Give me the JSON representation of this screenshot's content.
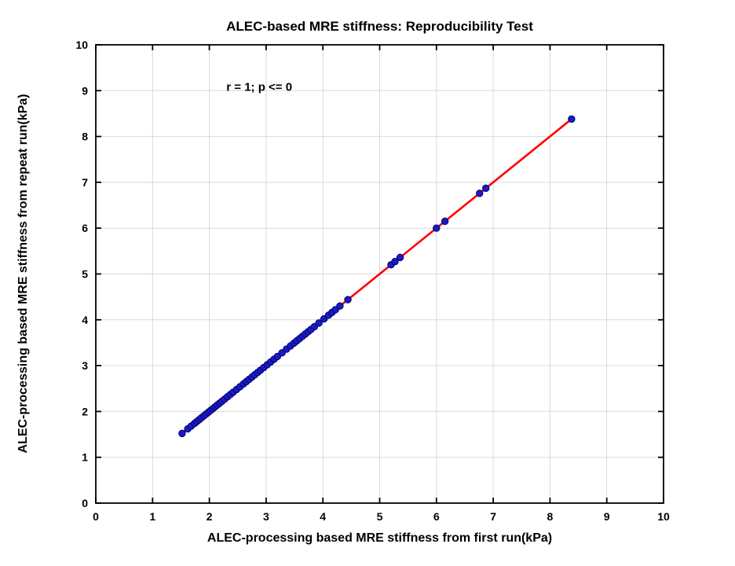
{
  "chart_data": {
    "type": "scatter",
    "title": "ALEC-based MRE stiffness: Reproducibility Test",
    "xlabel": "ALEC-processing based MRE stiffness from first run(kPa)",
    "ylabel": "ALEC-processing based MRE stiffness from repeat run(kPa)",
    "annotation": {
      "text": "r = 1; p <= 0",
      "x": 2.3,
      "y": 9.08
    },
    "xlim": [
      0,
      10
    ],
    "ylim": [
      0,
      10
    ],
    "xticks": [
      0,
      1,
      2,
      3,
      4,
      5,
      6,
      7,
      8,
      9,
      10
    ],
    "yticks": [
      0,
      1,
      2,
      3,
      4,
      5,
      6,
      7,
      8,
      9,
      10
    ],
    "grid": true,
    "legend": null,
    "fit_line": {
      "x1": 1.52,
      "y1": 1.52,
      "x2": 8.38,
      "y2": 8.38
    },
    "points": [
      [
        1.52,
        1.52
      ],
      [
        1.62,
        1.62
      ],
      [
        1.68,
        1.68
      ],
      [
        1.74,
        1.74
      ],
      [
        1.78,
        1.78
      ],
      [
        1.82,
        1.82
      ],
      [
        1.86,
        1.86
      ],
      [
        1.9,
        1.9
      ],
      [
        1.94,
        1.94
      ],
      [
        1.98,
        1.98
      ],
      [
        2.02,
        2.02
      ],
      [
        2.06,
        2.06
      ],
      [
        2.1,
        2.1
      ],
      [
        2.14,
        2.14
      ],
      [
        2.18,
        2.18
      ],
      [
        2.22,
        2.22
      ],
      [
        2.27,
        2.27
      ],
      [
        2.32,
        2.32
      ],
      [
        2.37,
        2.37
      ],
      [
        2.42,
        2.42
      ],
      [
        2.48,
        2.48
      ],
      [
        2.54,
        2.54
      ],
      [
        2.6,
        2.6
      ],
      [
        2.65,
        2.65
      ],
      [
        2.7,
        2.7
      ],
      [
        2.75,
        2.75
      ],
      [
        2.8,
        2.8
      ],
      [
        2.85,
        2.85
      ],
      [
        2.9,
        2.9
      ],
      [
        2.96,
        2.96
      ],
      [
        3.02,
        3.02
      ],
      [
        3.08,
        3.08
      ],
      [
        3.14,
        3.14
      ],
      [
        3.2,
        3.2
      ],
      [
        3.28,
        3.28
      ],
      [
        3.36,
        3.36
      ],
      [
        3.43,
        3.43
      ],
      [
        3.49,
        3.49
      ],
      [
        3.54,
        3.54
      ],
      [
        3.59,
        3.59
      ],
      [
        3.64,
        3.64
      ],
      [
        3.69,
        3.69
      ],
      [
        3.74,
        3.74
      ],
      [
        3.79,
        3.79
      ],
      [
        3.85,
        3.85
      ],
      [
        3.93,
        3.93
      ],
      [
        4.02,
        4.02
      ],
      [
        4.1,
        4.1
      ],
      [
        4.16,
        4.16
      ],
      [
        4.22,
        4.22
      ],
      [
        4.3,
        4.3
      ],
      [
        4.44,
        4.44
      ],
      [
        5.2,
        5.2
      ],
      [
        5.27,
        5.27
      ],
      [
        5.36,
        5.36
      ],
      [
        6.0,
        6.0
      ],
      [
        6.15,
        6.15
      ],
      [
        6.76,
        6.76
      ],
      [
        6.87,
        6.87
      ],
      [
        8.38,
        8.38
      ]
    ],
    "colors": {
      "fit_line": "#ff0000",
      "marker_fill": "#1b1bbf",
      "marker_edge": "#00007a",
      "grid": "#d9d9d9",
      "axis": "#000000"
    },
    "marker_radius": 4.2
  }
}
